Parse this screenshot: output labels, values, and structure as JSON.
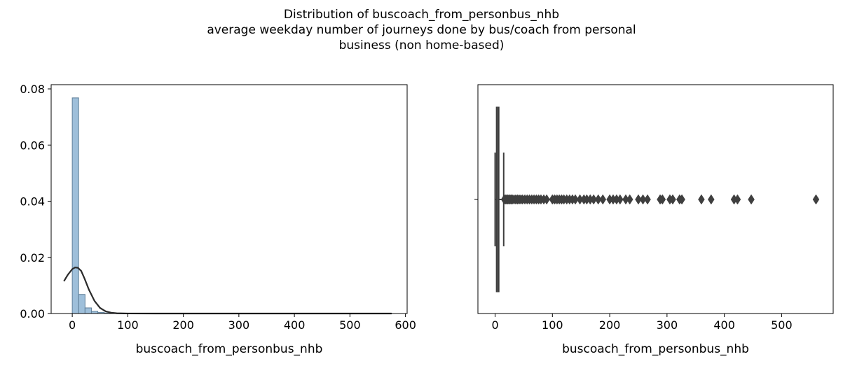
{
  "chart_data": [
    {
      "type": "bar",
      "title": "Distribution of buscoach_from_personbus_nhb",
      "subtitle_lines": [
        "average weekday number of journeys done by bus/coach from personal",
        "business (non home-based)"
      ],
      "xlabel": "buscoach_from_personbus_nhb",
      "ylabel": "",
      "xlim": [
        -38,
        603
      ],
      "ylim": [
        0,
        0.0815
      ],
      "xticks": [
        0,
        100,
        200,
        300,
        400,
        500,
        600
      ],
      "yticks": [
        0.0,
        0.02,
        0.04,
        0.06,
        0.08
      ],
      "ytick_labels": [
        "0.00",
        "0.02",
        "0.04",
        "0.06",
        "0.08"
      ],
      "bins": [
        {
          "x0": 0,
          "x1": 11.5,
          "density": 0.0768
        },
        {
          "x0": 11.5,
          "x1": 23,
          "density": 0.0068
        },
        {
          "x0": 23,
          "x1": 34.5,
          "density": 0.002
        },
        {
          "x0": 34.5,
          "x1": 46,
          "density": 0.0008
        },
        {
          "x0": 46,
          "x1": 57.5,
          "density": 0.0004
        },
        {
          "x0": 57.5,
          "x1": 69,
          "density": 0.0002
        },
        {
          "x0": 69,
          "x1": 80.5,
          "density": 0.00015
        },
        {
          "x0": 80.5,
          "x1": 92,
          "density": 0.0001
        },
        {
          "x0": 92,
          "x1": 575,
          "density": 3e-05
        }
      ],
      "kde": {
        "x": [
          -15,
          -8,
          0,
          5,
          10,
          16,
          22,
          30,
          40,
          50,
          60,
          70,
          80,
          100,
          150,
          300,
          575
        ],
        "y": [
          0.0115,
          0.0138,
          0.0158,
          0.0164,
          0.0163,
          0.0152,
          0.0125,
          0.0085,
          0.0045,
          0.002,
          0.0008,
          0.0003,
          0.0001,
          2e-05,
          0,
          0,
          0
        ]
      },
      "bar_color": "#9ebfda",
      "bar_edge_color": "#5f7f99",
      "kde_color": "#2b2b2b"
    },
    {
      "type": "box",
      "xlabel": "buscoach_from_personbus_nhb",
      "xlim": [
        -30,
        590
      ],
      "xticks": [
        0,
        100,
        200,
        300,
        400,
        500
      ],
      "box": {
        "q1": 2,
        "median": 4,
        "q3": 7,
        "whisker_low": 0,
        "whisker_high": 15
      },
      "outliers": [
        16,
        18,
        20,
        22,
        24,
        26,
        28,
        30,
        33,
        36,
        39,
        42,
        45,
        48,
        52,
        56,
        60,
        64,
        68,
        72,
        76,
        80,
        85,
        90,
        100,
        104,
        108,
        112,
        116,
        120,
        125,
        130,
        135,
        140,
        148,
        155,
        160,
        166,
        172,
        180,
        188,
        200,
        206,
        212,
        218,
        228,
        235,
        250,
        258,
        266,
        288,
        292,
        305,
        310,
        322,
        326,
        360,
        377,
        417,
        423,
        447,
        560
      ],
      "box_color": "#3f3f3f"
    }
  ]
}
